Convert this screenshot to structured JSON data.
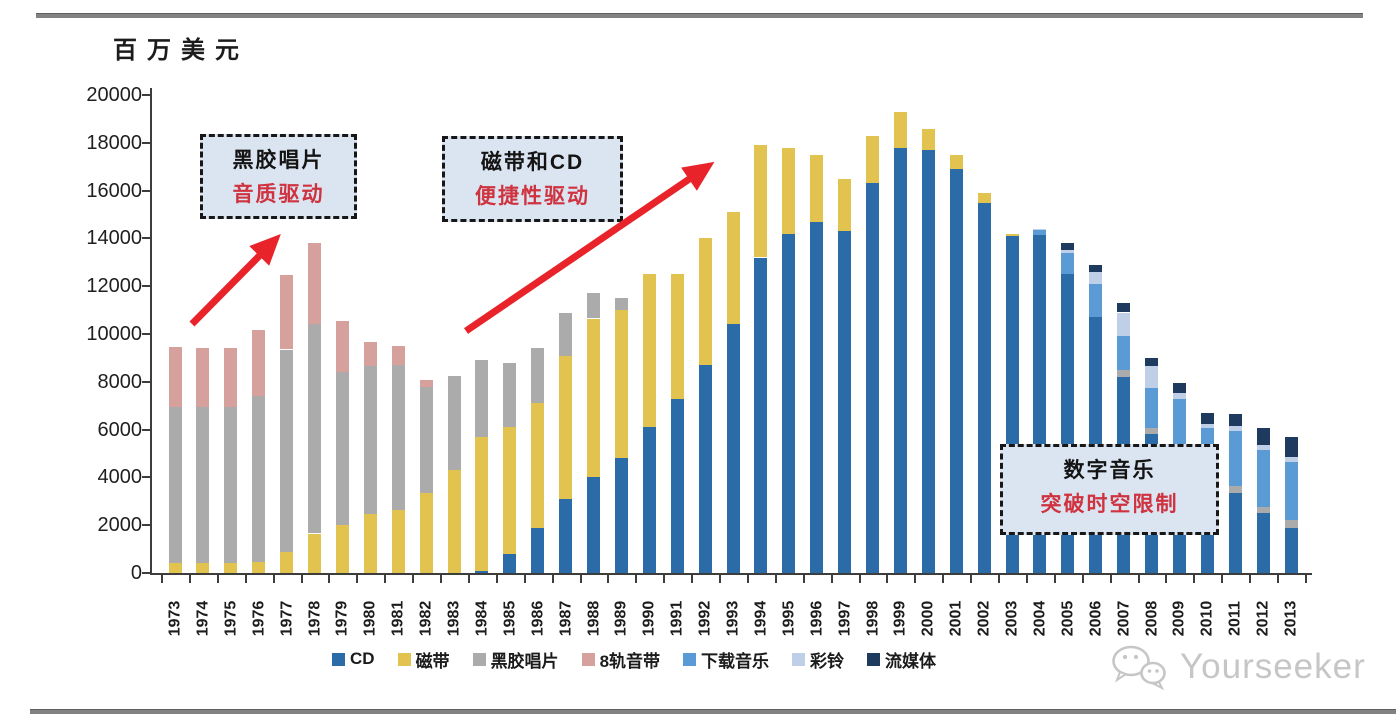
{
  "page": {
    "unit_label": "百万美元",
    "watermark_text": "Yourseeker"
  },
  "annotations": [
    {
      "line1": "黑胶唱片",
      "line2": "音质驱动"
    },
    {
      "line1": "磁带和CD",
      "line2": "便捷性驱动"
    },
    {
      "line1": "数字音乐",
      "line2": "突破时空限制"
    }
  ],
  "colors": {
    "annotation_red": "#cf3340",
    "arrow_red": "#e8232a",
    "callout_bg": "#dbe5f1",
    "axis": "#3d3d3d"
  },
  "chart_data": {
    "type": "bar",
    "stacked": true,
    "title": "",
    "ylabel": "百万美元",
    "xlabel": "",
    "ylim": [
      0,
      20000
    ],
    "y_tick_step": 2000,
    "y_tick_labels": [
      "0",
      "2000",
      "4000",
      "6000",
      "8000",
      "10000",
      "12000",
      "14000",
      "16000",
      "18000",
      "20000"
    ],
    "grid": false,
    "legend_position": "bottom",
    "categories": [
      "1973",
      "1974",
      "1975",
      "1976",
      "1977",
      "1978",
      "1979",
      "1980",
      "1981",
      "1982",
      "1983",
      "1984",
      "1985",
      "1986",
      "1987",
      "1988",
      "1989",
      "1990",
      "1991",
      "1992",
      "1993",
      "1994",
      "1995",
      "1996",
      "1997",
      "1998",
      "1999",
      "2000",
      "2001",
      "2002",
      "2003",
      "2004",
      "2005",
      "2006",
      "2007",
      "2008",
      "2009",
      "2010",
      "2011",
      "2012",
      "2013"
    ],
    "series": [
      {
        "name": "CD",
        "color": "#2b6ba8",
        "values": [
          0,
          0,
          0,
          0,
          0,
          0,
          0,
          0,
          0,
          0,
          0,
          100,
          800,
          1870,
          3100,
          4000,
          4800,
          6100,
          7300,
          8700,
          10400,
          13200,
          14200,
          14700,
          14300,
          16300,
          17800,
          17700,
          16900,
          15500,
          14100,
          14150,
          12500,
          10700,
          8200,
          5800,
          4600,
          4000,
          3350,
          2500,
          1900
        ]
      },
      {
        "name": "磁带",
        "color": "#e3c34f",
        "values": [
          400,
          400,
          400,
          450,
          900,
          1650,
          2000,
          2450,
          2650,
          3350,
          4300,
          5600,
          5300,
          5230,
          6000,
          6650,
          6200,
          6400,
          5200,
          5300,
          4700,
          4700,
          3600,
          2800,
          2200,
          2000,
          1500,
          900,
          600,
          400,
          100,
          0,
          0,
          0,
          0,
          0,
          0,
          0,
          0,
          0,
          0
        ]
      },
      {
        "name": "黑胶唱片",
        "color": "#ababab",
        "values": [
          6550,
          6550,
          6550,
          6950,
          8450,
          8750,
          6400,
          6200,
          6050,
          4450,
          3950,
          3200,
          2700,
          2300,
          1800,
          1050,
          500,
          0,
          0,
          0,
          0,
          0,
          0,
          0,
          0,
          0,
          0,
          0,
          0,
          0,
          0,
          0,
          0,
          0,
          300,
          250,
          100,
          100,
          300,
          250,
          300
        ]
      },
      {
        "name": "8轨音带",
        "color": "#d6a09c",
        "values": [
          2500,
          2450,
          2450,
          2750,
          3100,
          3400,
          2150,
          1000,
          800,
          270,
          0,
          0,
          0,
          0,
          0,
          0,
          0,
          0,
          0,
          0,
          0,
          0,
          0,
          0,
          0,
          0,
          0,
          0,
          0,
          0,
          0,
          0,
          0,
          0,
          0,
          0,
          0,
          0,
          0,
          0,
          0
        ]
      },
      {
        "name": "下载音乐",
        "color": "#5b9bd5",
        "values": [
          0,
          0,
          0,
          0,
          0,
          0,
          0,
          0,
          0,
          0,
          0,
          0,
          0,
          0,
          0,
          0,
          0,
          0,
          0,
          0,
          0,
          0,
          0,
          0,
          0,
          0,
          0,
          0,
          0,
          0,
          0,
          200,
          900,
          1400,
          1400,
          1700,
          2600,
          1950,
          2300,
          2400,
          2450
        ]
      },
      {
        "name": "彩铃",
        "color": "#bfcfe7",
        "values": [
          0,
          0,
          0,
          0,
          0,
          0,
          0,
          0,
          0,
          0,
          0,
          0,
          0,
          0,
          0,
          0,
          0,
          0,
          0,
          0,
          0,
          0,
          0,
          0,
          0,
          0,
          0,
          0,
          0,
          0,
          0,
          50,
          100,
          500,
          1000,
          900,
          250,
          200,
          200,
          200,
          200
        ]
      },
      {
        "name": "流媒体",
        "color": "#1e3a5f",
        "values": [
          0,
          0,
          0,
          0,
          0,
          0,
          0,
          0,
          0,
          0,
          0,
          0,
          0,
          0,
          0,
          0,
          0,
          0,
          0,
          0,
          0,
          0,
          0,
          0,
          0,
          0,
          0,
          0,
          0,
          0,
          0,
          0,
          300,
          300,
          400,
          350,
          400,
          450,
          500,
          700,
          850
        ]
      }
    ]
  }
}
